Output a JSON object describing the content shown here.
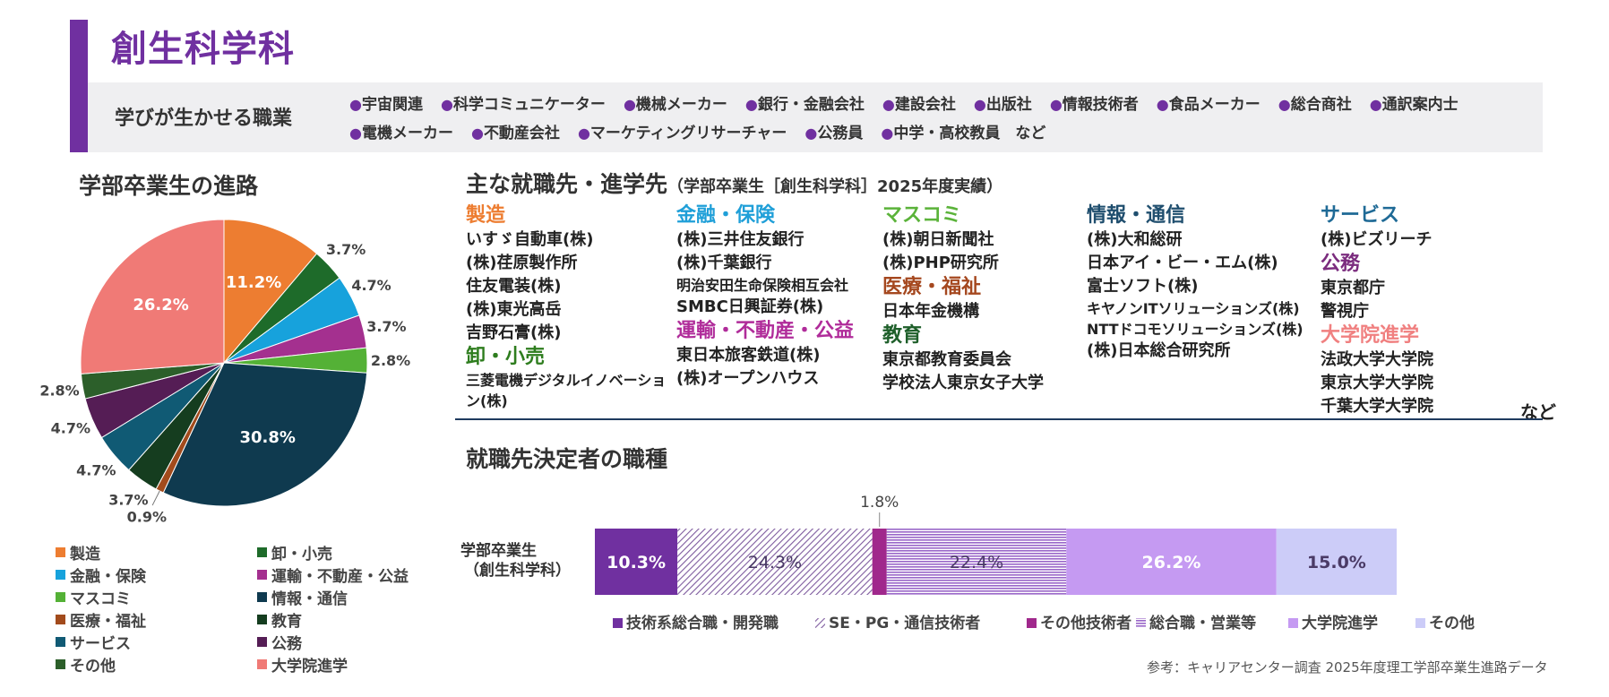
{
  "header": {
    "title": "創生科学科",
    "jobs_label": "学びが生かせる職業",
    "jobs": [
      "宇宙関連",
      "科学コミュニケーター",
      "機械メーカー",
      "銀行・金融会社",
      "建設会社",
      "出版社",
      "情報技術者",
      "食品メーカー",
      "総合商社",
      "通訳案内士",
      "電機メーカー",
      "不動産会社",
      "マーケティングリサーチャー",
      "公務員",
      "中学・高校教員　など"
    ]
  },
  "pie_title": "学部卒業生の進路",
  "employers_title": "主な就職先・進学先",
  "employers_subtitle": "（学部卒業生［創生科学科］2025年度実績）",
  "occupation_title": "就職先決定者の職種",
  "source_note": "参考：キャリアセンター調査 2025年度理工学部卒業生進路データ",
  "employers": {
    "columns": [
      [
        {
          "head": "製造",
          "color": "#ED7D31",
          "items": [
            {
              "t": "いすゞ自動車(株)"
            },
            {
              "t": "(株)荏原製作所"
            },
            {
              "t": "住友電装(株)"
            },
            {
              "t": "(株)東光高岳"
            },
            {
              "t": "吉野石膏(株)"
            }
          ]
        },
        {
          "head": "卸・小売",
          "color": "#2E7D1E",
          "items": [
            {
              "t": "三菱電機デジタルイノベーション(株)",
              "small": true,
              "wrap": true
            }
          ]
        }
      ],
      [
        {
          "head": "金融・保険",
          "color": "#1F9FD8",
          "items": [
            {
              "t": "(株)三井住友銀行"
            },
            {
              "t": "(株)千葉銀行"
            },
            {
              "t": "明治安田生命保険相互会社",
              "small": true
            },
            {
              "t": "SMBC日興証券(株)"
            }
          ]
        },
        {
          "head": "運輸・不動産・公益",
          "color": "#B02C9A",
          "items": [
            {
              "t": "東日本旅客鉄道(株)"
            },
            {
              "t": "(株)オープンハウス"
            }
          ]
        }
      ],
      [
        {
          "head": "マスコミ",
          "color": "#5BB33A",
          "items": [
            {
              "t": "(株)朝日新聞社"
            },
            {
              "t": "(株)PHP研究所"
            }
          ]
        },
        {
          "head": "医療・福祉",
          "color": "#A5481F",
          "items": [
            {
              "t": "日本年金機構"
            }
          ]
        },
        {
          "head": "教育",
          "color": "#1E5F2A",
          "items": [
            {
              "t": "東京都教育委員会"
            },
            {
              "t": "学校法人東京女子大学"
            }
          ]
        }
      ],
      [
        {
          "head": "情報・通信",
          "color": "#1F4E6E",
          "items": [
            {
              "t": "(株)大和総研"
            },
            {
              "t": "日本アイ・ビー・エム(株)"
            },
            {
              "t": "富士ソフト(株)"
            },
            {
              "t": "キヤノンITソリューションズ(株)",
              "small": true,
              "wrap": true
            },
            {
              "t": "NTTドコモソリューションズ(株)",
              "small": true,
              "wrap": true
            },
            {
              "t": "(株)日本総合研究所"
            }
          ]
        }
      ],
      [
        {
          "head": "サービス",
          "color": "#1F6A96",
          "items": [
            {
              "t": "(株)ビズリーチ"
            }
          ]
        },
        {
          "head": "公務",
          "color": "#7B2C7E",
          "items": [
            {
              "t": "東京都庁"
            },
            {
              "t": "警視庁"
            }
          ]
        },
        {
          "head": "大学院進学",
          "color": "#F08080",
          "items": [
            {
              "t": "法政大学大学院"
            },
            {
              "t": "東京大学大学院"
            },
            {
              "t": "千葉大学大学院"
            }
          ]
        }
      ]
    ],
    "trailing": "など"
  },
  "chart_data": [
    {
      "type": "pie",
      "title": "学部卒業生の進路",
      "slices": [
        {
          "label": "製造",
          "value": 11.2,
          "color": "#ED7D31"
        },
        {
          "label": "卸・小売",
          "value": 3.7,
          "color": "#1E6B2A"
        },
        {
          "label": "金融・保険",
          "value": 4.7,
          "color": "#17A2DC"
        },
        {
          "label": "運輸・不動産・公益",
          "value": 3.7,
          "color": "#A4308F"
        },
        {
          "label": "マスコミ",
          "value": 2.8,
          "color": "#54B136"
        },
        {
          "label": "情報・通信",
          "value": 30.8,
          "color": "#0F3A4F"
        },
        {
          "label": "医療・福祉",
          "value": 0.9,
          "color": "#A24B1C"
        },
        {
          "label": "教育",
          "value": 3.7,
          "color": "#153D1F"
        },
        {
          "label": "サービス",
          "value": 4.7,
          "color": "#105A74"
        },
        {
          "label": "公務",
          "value": 4.7,
          "color": "#551D55"
        },
        {
          "label": "その他",
          "value": 2.8,
          "color": "#2C5F2A"
        },
        {
          "label": "大学院進学",
          "value": 26.2,
          "color": "#F07A76"
        }
      ],
      "value_labels": [
        "11.2%",
        "3.7%",
        "4.7%",
        "3.7%",
        "2.8%",
        "30.8%",
        "0.9%",
        "3.7%",
        "4.7%",
        "4.7%",
        "2.8%",
        "26.2%"
      ],
      "legend_placement": "bottom"
    },
    {
      "type": "bar",
      "orientation": "horizontal",
      "stacked": true,
      "normalized": true,
      "title": "就職先決定者の職種",
      "categories": [
        "学部卒業生（創生科学科）"
      ],
      "category_lines": [
        "学部卒業生",
        "（創生科学科）"
      ],
      "series": [
        {
          "name": "技術系総合職・開発職",
          "values": [
            10.3
          ],
          "label": "10.3%",
          "color": "#7030A0",
          "pattern": "solid"
        },
        {
          "name": "SE・PG・通信技術者",
          "values": [
            24.3
          ],
          "label": "24.3%",
          "color": "#7D5A9E",
          "pattern": "diagonal"
        },
        {
          "name": "その他技術者",
          "values": [
            1.8
          ],
          "label": "1.8%",
          "color": "#A0288C",
          "pattern": "solid"
        },
        {
          "name": "総合職・営業等",
          "values": [
            22.4
          ],
          "label": "22.4%",
          "color": "#9966C8",
          "pattern": "horizontal"
        },
        {
          "name": "大学院進学",
          "values": [
            26.2
          ],
          "label": "26.2%",
          "color": "#C59AF2",
          "pattern": "solid"
        },
        {
          "name": "その他",
          "values": [
            15.0
          ],
          "label": "15.0%",
          "color": "#CCCCF8",
          "pattern": "solid"
        }
      ],
      "legend_placement": "bottom"
    }
  ]
}
